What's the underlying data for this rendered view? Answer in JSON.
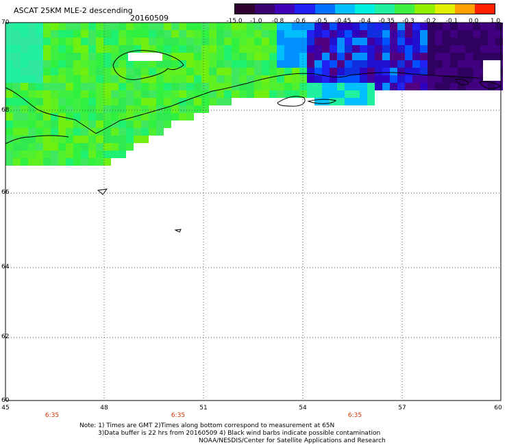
{
  "header": {
    "title": "ASCAT 25KM MLE-2 descending",
    "date": "20160509"
  },
  "colorbar": {
    "labels": [
      "-15.0",
      "-1.0",
      "-0.8",
      "-0.6",
      "-0.5",
      "-0.45",
      "-0.4",
      "-0.35",
      "-0.3",
      "-0.2",
      "-0.1",
      "0.0",
      "1.0"
    ],
    "colors": [
      "#300030",
      "#3a0070",
      "#4000b8",
      "#2020f0",
      "#0070ff",
      "#00c0ff",
      "#00f0e0",
      "#20f0a0",
      "#40f040",
      "#90f000",
      "#e0f000",
      "#ffa000",
      "#ff2000"
    ]
  },
  "axes": {
    "lat_labels": [
      "70",
      "68",
      "66",
      "64",
      "62",
      "60"
    ],
    "lon_labels": [
      "45",
      "48",
      "51",
      "54",
      "57",
      "60"
    ],
    "times": [
      "6:35",
      "6:35",
      "6:35"
    ]
  },
  "notes": {
    "line1": "Note: 1) Times are GMT 2)Times along bottom correspond to measurement at 65N",
    "line2": "3)Data buffer is 22 hrs from 20160509 4) Black wind barbs indicate possible contamination",
    "line3": "NOAA/NESDIS/Center for Satellite Applications and Research"
  }
}
